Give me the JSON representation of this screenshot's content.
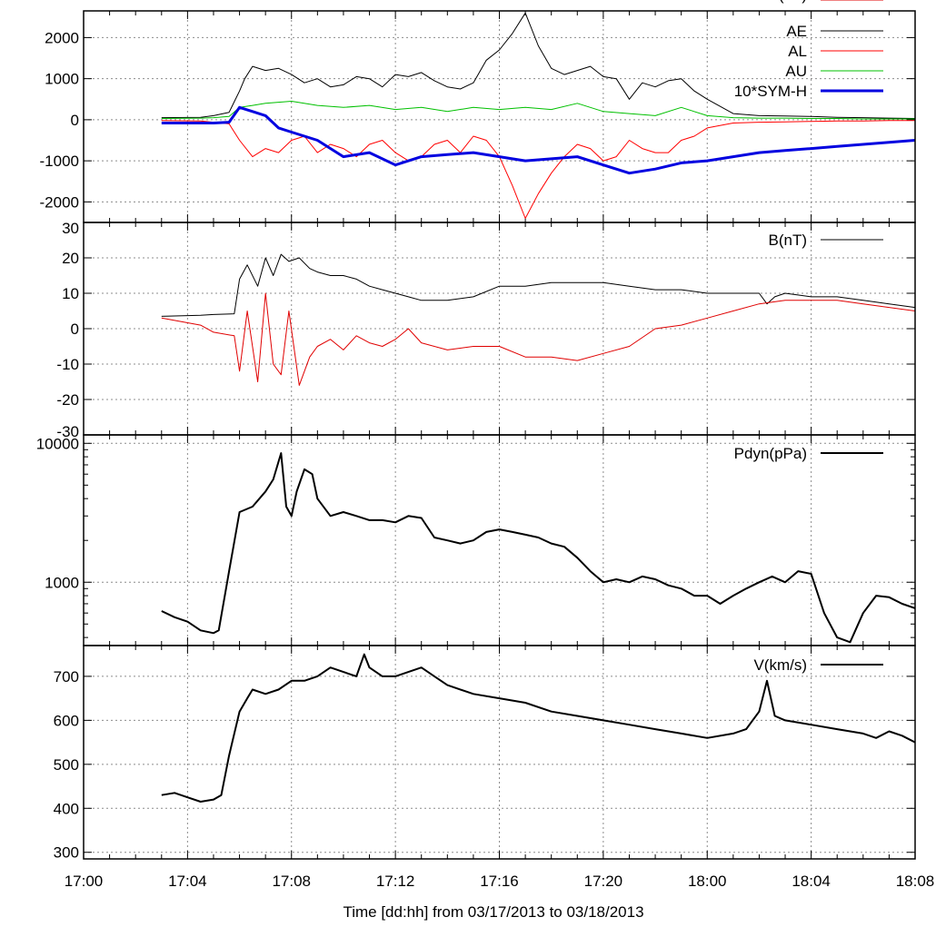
{
  "chart_data": [
    {
      "type": "line",
      "panel": "indices",
      "ylim": [
        -2500,
        2650
      ],
      "yticks": [
        2000,
        1000,
        0,
        -1000,
        -2000
      ],
      "ytick_labels": [
        "2000",
        "1000",
        "0",
        "-1000",
        "-2000"
      ],
      "legend_position": "top-right",
      "series": [
        {
          "name": "AE",
          "color": "#000000",
          "width": 1,
          "x": [
            3.0,
            4.5,
            5.0,
            5.6,
            6.0,
            6.2,
            6.5,
            7.0,
            7.5,
            8.0,
            8.5,
            9.0,
            9.5,
            10.0,
            10.5,
            11.0,
            11.5,
            12.0,
            12.5,
            13.0,
            13.5,
            14.0,
            14.5,
            15.0,
            15.5,
            16.0,
            16.5,
            17.0,
            17.5,
            18.0,
            18.5,
            19.0,
            19.5,
            20.0,
            20.5,
            21.0,
            21.5,
            22.0,
            22.5,
            23.0,
            23.5,
            24.0,
            25.0,
            26.0,
            27.0,
            28.0,
            29.0,
            30.0,
            31.0,
            32.0
          ],
          "y": [
            50,
            60,
            100,
            180,
            700,
            1000,
            1300,
            1200,
            1250,
            1100,
            900,
            1000,
            800,
            850,
            1050,
            1000,
            800,
            1100,
            1050,
            1150,
            950,
            800,
            750,
            900,
            1450,
            1700,
            2100,
            2600,
            1800,
            1250,
            1100,
            1200,
            1300,
            1050,
            1000,
            500,
            900,
            800,
            950,
            1000,
            700,
            500,
            150,
            100,
            90,
            80,
            60,
            50,
            40,
            30
          ]
        },
        {
          "name": "AL",
          "color": "#ff0000",
          "width": 1,
          "x": [
            3.0,
            4.5,
            5.0,
            5.6,
            6.0,
            6.5,
            7.0,
            7.5,
            8.0,
            8.5,
            9.0,
            9.5,
            10.0,
            10.5,
            11.0,
            11.5,
            12.0,
            12.5,
            13.0,
            13.5,
            14.0,
            14.5,
            15.0,
            15.5,
            16.0,
            16.5,
            17.0,
            17.5,
            18.0,
            18.5,
            19.0,
            19.5,
            20.0,
            20.5,
            21.0,
            21.5,
            22.0,
            22.5,
            23.0,
            23.5,
            24.0,
            25.0,
            26.0,
            27.0,
            28.0,
            29.0,
            30.0,
            31.0,
            32.0
          ],
          "y": [
            -20,
            -30,
            -60,
            -100,
            -500,
            -900,
            -700,
            -800,
            -500,
            -400,
            -800,
            -600,
            -700,
            -900,
            -600,
            -500,
            -800,
            -1000,
            -900,
            -600,
            -500,
            -800,
            -400,
            -500,
            -900,
            -1600,
            -2400,
            -1800,
            -1300,
            -900,
            -600,
            -700,
            -1000,
            -900,
            -500,
            -700,
            -800,
            -800,
            -500,
            -400,
            -200,
            -80,
            -60,
            -50,
            -40,
            -30,
            -30,
            -20,
            -20
          ]
        },
        {
          "name": "AU",
          "color": "#00c000",
          "width": 1,
          "x": [
            3.0,
            4.5,
            5.0,
            5.6,
            6.0,
            6.5,
            7.0,
            8.0,
            9.0,
            10.0,
            11.0,
            12.0,
            13.0,
            14.0,
            15.0,
            16.0,
            17.0,
            18.0,
            19.0,
            20.0,
            21.0,
            22.0,
            23.0,
            24.0,
            25.0,
            26.0,
            27.0,
            28.0,
            29.0,
            30.0,
            31.0,
            32.0
          ],
          "y": [
            30,
            40,
            50,
            80,
            300,
            350,
            400,
            450,
            350,
            300,
            350,
            250,
            300,
            200,
            300,
            250,
            300,
            250,
            400,
            200,
            150,
            100,
            300,
            100,
            50,
            40,
            40,
            30,
            30,
            20,
            20,
            20
          ]
        },
        {
          "name": "10*SYM-H",
          "color": "#0000e0",
          "width": 3,
          "x": [
            3.0,
            4.5,
            5.0,
            5.6,
            6.0,
            6.5,
            7.0,
            7.5,
            8.0,
            9.0,
            10.0,
            11.0,
            12.0,
            13.0,
            14.0,
            15.0,
            16.0,
            17.0,
            18.0,
            19.0,
            20.0,
            21.0,
            22.0,
            23.0,
            24.0,
            25.0,
            26.0,
            27.0,
            28.0,
            29.0,
            30.0,
            31.0,
            32.0
          ],
          "y": [
            -80,
            -80,
            -80,
            -60,
            300,
            200,
            100,
            -200,
            -300,
            -500,
            -900,
            -800,
            -1100,
            -900,
            -850,
            -800,
            -900,
            -1000,
            -950,
            -900,
            -1100,
            -1300,
            -1200,
            -1050,
            -1000,
            -900,
            -800,
            -750,
            -700,
            -650,
            -600,
            -550,
            -500
          ]
        }
      ]
    },
    {
      "type": "line",
      "panel": "imf",
      "ylim": [
        -30,
        30
      ],
      "yticks": [
        30,
        20,
        10,
        0,
        -10,
        -20,
        -30
      ],
      "ytick_labels": [
        "30",
        "20",
        "10",
        "0",
        "-10",
        "-20",
        "-30"
      ],
      "legend_position": "top-right",
      "series": [
        {
          "name": "B(nT)",
          "color": "#000000",
          "width": 1,
          "x": [
            3.0,
            4.5,
            5.0,
            5.8,
            6.0,
            6.3,
            6.7,
            7.0,
            7.3,
            7.6,
            7.9,
            8.3,
            8.7,
            9.0,
            9.5,
            10.0,
            10.5,
            11.0,
            11.5,
            12.0,
            12.5,
            13.0,
            14.0,
            15.0,
            16.0,
            17.0,
            18.0,
            19.0,
            20.0,
            21.0,
            22.0,
            23.0,
            24.0,
            25.0,
            26.0,
            26.3,
            26.6,
            27.0,
            28.0,
            29.0,
            30.0,
            31.0,
            32.0
          ],
          "y": [
            3.5,
            3.8,
            4.0,
            4.2,
            14,
            18,
            12,
            20,
            15,
            21,
            19,
            20,
            17,
            16,
            15,
            15,
            14,
            12,
            11,
            10,
            9,
            8,
            8,
            9,
            12,
            12,
            13,
            13,
            13,
            12,
            11,
            11,
            10,
            10,
            10,
            7,
            9,
            10,
            9,
            9,
            8,
            7,
            6
          ]
        },
        {
          "name": "Bz(nT)",
          "color": "#e00000",
          "width": 1,
          "x": [
            3.0,
            4.5,
            5.0,
            5.8,
            6.0,
            6.3,
            6.7,
            7.0,
            7.3,
            7.6,
            7.9,
            8.3,
            8.7,
            9.0,
            9.5,
            10.0,
            10.5,
            11.0,
            11.5,
            12.0,
            12.5,
            13.0,
            14.0,
            15.0,
            16.0,
            17.0,
            18.0,
            19.0,
            20.0,
            21.0,
            22.0,
            23.0,
            24.0,
            25.0,
            26.0,
            27.0,
            28.0,
            29.0,
            30.0,
            31.0,
            32.0
          ],
          "y": [
            3,
            1,
            -1,
            -2,
            -12,
            5,
            -15,
            10,
            -10,
            -13,
            5,
            -16,
            -8,
            -5,
            -3,
            -6,
            -2,
            -4,
            -5,
            -3,
            0,
            -4,
            -6,
            -5,
            -5,
            -8,
            -8,
            -9,
            -7,
            -5,
            0,
            1,
            3,
            5,
            7,
            8,
            8,
            8,
            7,
            6,
            5
          ]
        }
      ]
    },
    {
      "type": "line",
      "panel": "pressure",
      "scale": "log",
      "ylim": [
        350,
        11500
      ],
      "yticks": [
        10000,
        1000
      ],
      "ytick_labels": [
        "10000",
        "1000"
      ],
      "legend_position": "top-right",
      "series": [
        {
          "name": "Pdyn(pPa)",
          "color": "#000000",
          "width": 2,
          "x": [
            3.0,
            3.5,
            4.0,
            4.5,
            5.0,
            5.2,
            5.6,
            6.0,
            6.5,
            7.0,
            7.3,
            7.6,
            7.8,
            8.0,
            8.2,
            8.5,
            8.8,
            9.0,
            9.5,
            10.0,
            10.5,
            11.0,
            11.5,
            12.0,
            12.5,
            13.0,
            13.5,
            14.0,
            14.5,
            15.0,
            15.5,
            16.0,
            16.5,
            17.0,
            17.5,
            18.0,
            18.5,
            19.0,
            19.5,
            20.0,
            20.5,
            21.0,
            21.5,
            22.0,
            22.5,
            23.0,
            23.5,
            24.0,
            24.5,
            25.0,
            25.5,
            26.0,
            26.5,
            27.0,
            27.5,
            28.0,
            28.5,
            29.0,
            29.5,
            30.0,
            30.5,
            31.0,
            31.5,
            32.0
          ],
          "y": [
            620,
            560,
            520,
            450,
            430,
            450,
            1200,
            3200,
            3500,
            4500,
            5500,
            8500,
            3500,
            3000,
            4500,
            6500,
            6000,
            4000,
            3000,
            3200,
            3000,
            2800,
            2800,
            2700,
            3000,
            2900,
            2100,
            2000,
            1900,
            2000,
            2300,
            2400,
            2300,
            2200,
            2100,
            1900,
            1800,
            1500,
            1200,
            1000,
            1050,
            1000,
            1100,
            1050,
            950,
            900,
            800,
            800,
            700,
            800,
            900,
            1000,
            1100,
            1000,
            1200,
            1150,
            600,
            400,
            370,
            600,
            800,
            780,
            700,
            650
          ]
        }
      ]
    },
    {
      "type": "line",
      "panel": "velocity",
      "ylim": [
        285,
        770
      ],
      "yticks": [
        700,
        600,
        500,
        400,
        300
      ],
      "ytick_labels": [
        "700",
        "600",
        "500",
        "400",
        "300"
      ],
      "legend_position": "top-right",
      "series": [
        {
          "name": "V(km/s)",
          "color": "#000000",
          "width": 2,
          "x": [
            3.0,
            3.5,
            4.0,
            4.5,
            5.0,
            5.3,
            5.6,
            6.0,
            6.3,
            6.5,
            7.0,
            7.5,
            8.0,
            8.5,
            9.0,
            9.5,
            10.0,
            10.5,
            10.8,
            11.0,
            11.5,
            12.0,
            12.5,
            13.0,
            13.5,
            14.0,
            15.0,
            16.0,
            17.0,
            18.0,
            19.0,
            20.0,
            21.0,
            22.0,
            23.0,
            24.0,
            25.0,
            25.5,
            26.0,
            26.3,
            26.6,
            27.0,
            28.0,
            29.0,
            30.0,
            30.5,
            31.0,
            31.5,
            32.0
          ],
          "y": [
            430,
            435,
            425,
            415,
            420,
            430,
            520,
            620,
            650,
            670,
            660,
            670,
            690,
            690,
            700,
            720,
            710,
            700,
            750,
            720,
            700,
            700,
            710,
            720,
            700,
            680,
            660,
            650,
            640,
            620,
            610,
            600,
            590,
            580,
            570,
            560,
            570,
            580,
            620,
            690,
            610,
            600,
            590,
            580,
            570,
            560,
            575,
            565,
            550
          ]
        }
      ]
    }
  ],
  "x_axis": {
    "xlim": [
      0,
      32
    ],
    "ticks": [
      0,
      4,
      8,
      12,
      16,
      20,
      24,
      28,
      32
    ],
    "tick_labels": [
      "17:00",
      "17:04",
      "17:08",
      "17:12",
      "17:16",
      "17:20",
      "18:00",
      "18:04",
      "18:08"
    ],
    "xlabel": "Time [dd:hh]  from 03/17/2013  to  03/18/2013"
  },
  "grid": true
}
